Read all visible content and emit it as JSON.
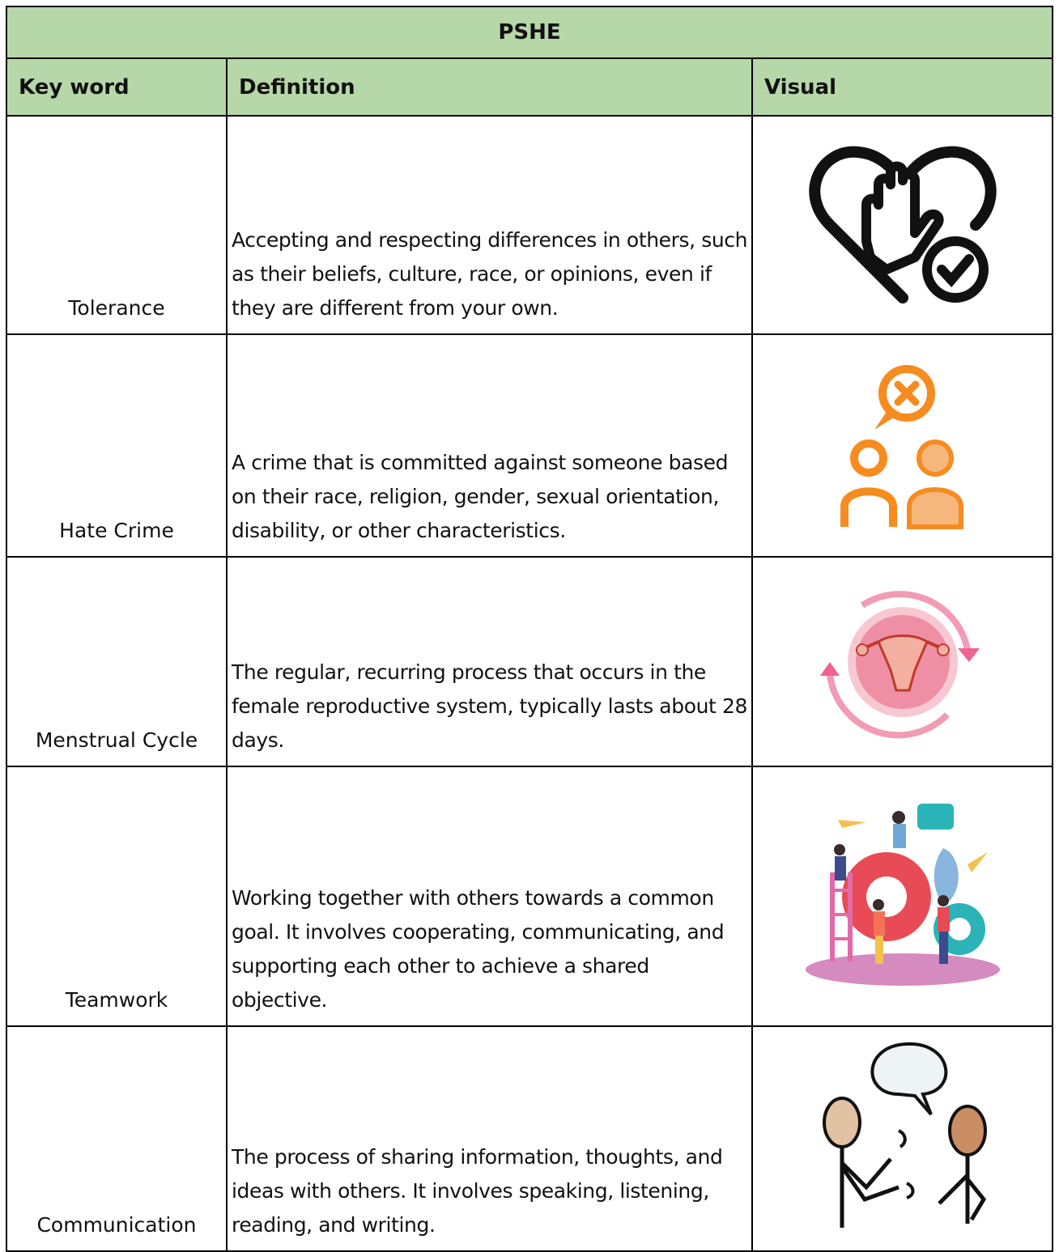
{
  "header": {
    "title": "PSHE",
    "columns": [
      "Key word",
      "Definition",
      "Visual"
    ]
  },
  "table": {
    "rows": [
      {
        "keyword": "Tolerance",
        "definition": "Accepting and respecting differences in others, such as their beliefs, culture, race, or opinions, even if they are different from your own."
      },
      {
        "keyword": "Hate Crime",
        "definition": "A crime that is committed against someone based on their race, religion, gender, sexual orientation, disability, or other characteristics."
      },
      {
        "keyword": "Menstrual Cycle",
        "definition": "The regular, recurring process that occurs in the female reproductive system, typically lasts about 28 days."
      },
      {
        "keyword": "Teamwork",
        "definition": "Working together with others towards a common goal. It involves cooperating, communicating, and supporting each other to achieve a shared objective."
      },
      {
        "keyword": "Communication",
        "definition": "The process of sharing information, thoughts, and ideas with others. It involves speaking, listening, reading, and writing."
      }
    ]
  }
}
